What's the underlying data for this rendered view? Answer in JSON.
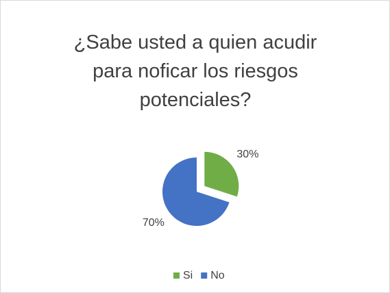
{
  "chart_data": {
    "type": "pie",
    "title": "¿Sabe usted a quien acudir para noficar los riesgos potenciales?",
    "categories": [
      "Si",
      "No"
    ],
    "values": [
      30,
      70
    ],
    "value_labels": [
      "30%",
      "70%"
    ],
    "colors": [
      "#70ad47",
      "#4472c4"
    ],
    "legend": "bottom",
    "exploded": [
      true,
      false
    ]
  }
}
